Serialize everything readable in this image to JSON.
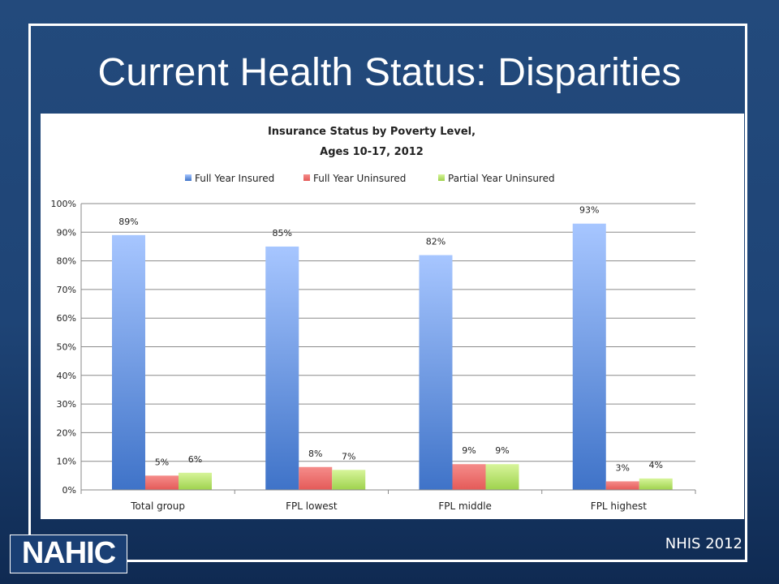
{
  "slide": {
    "title": "Current Health Status: Disparities",
    "logo_text": "NAHIC",
    "source": "NHIS 2012"
  },
  "chart_data": {
    "type": "bar",
    "title": [
      "Insurance Status by Poverty Level,",
      "Ages 10-17, 2012"
    ],
    "categories": [
      "Total group",
      "FPL lowest",
      "FPL middle",
      "FPL highest"
    ],
    "series": [
      {
        "name": "Full Year Insured",
        "values": [
          89,
          85,
          82,
          93
        ],
        "labels": [
          "89%",
          "85%",
          "82%",
          "93%"
        ],
        "color": "#8fb4f2"
      },
      {
        "name": "Full Year Uninsured",
        "values": [
          5,
          8,
          9,
          3
        ],
        "labels": [
          "5%",
          "8%",
          "9%",
          "3%"
        ],
        "color": "#f07775"
      },
      {
        "name": "Partial Year Uninsured",
        "values": [
          6,
          7,
          9,
          4
        ],
        "labels": [
          "6%",
          "7%",
          "9%",
          "4%"
        ],
        "color": "#c6ee7f"
      }
    ],
    "yticks": [
      "0%",
      "10%",
      "20%",
      "30%",
      "40%",
      "50%",
      "60%",
      "70%",
      "80%",
      "90%",
      "100%"
    ],
    "ylim": [
      0,
      100
    ],
    "grid": true,
    "legend": "top",
    "background": "#ffffff"
  }
}
